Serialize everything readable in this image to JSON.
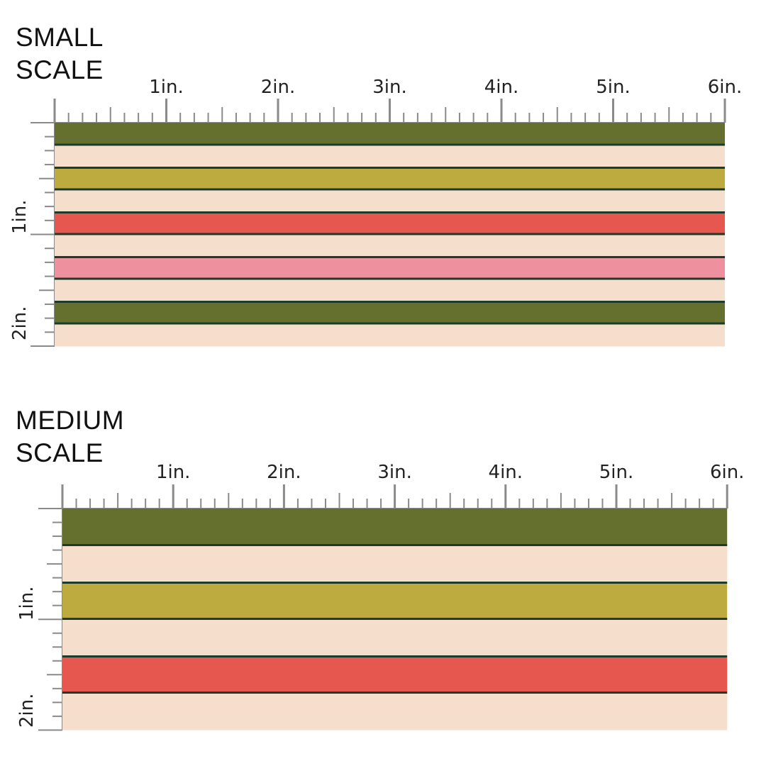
{
  "sections": [
    {
      "title": "SMALL\nSCALE",
      "h_labels": [
        "1in.",
        "2in.",
        "3in.",
        "4in.",
        "5in.",
        "6in."
      ],
      "v_labels": [
        "1in.",
        "2in."
      ]
    },
    {
      "title": "MEDIUM\nSCALE",
      "h_labels": [
        "1in.",
        "2in.",
        "3in.",
        "4in.",
        "5in.",
        "6in."
      ],
      "v_labels": [
        "1in.",
        "2in."
      ]
    }
  ],
  "colors": {
    "olive": "#65702f",
    "mustard": "#bdab3f",
    "coral": "#e5574f",
    "pink": "#ee909e",
    "cream": "#f5dfcc",
    "pinstripe": "#1c3b2b",
    "tick": "#8a8a8a"
  },
  "stripe_sequence": [
    "olive",
    "cream",
    "mustard",
    "cream",
    "coral",
    "cream",
    "pink",
    "cream",
    "olive",
    "cream"
  ]
}
